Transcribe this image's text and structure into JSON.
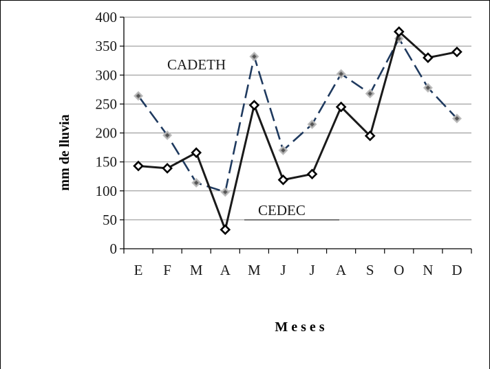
{
  "chart_data": {
    "type": "line",
    "categories": [
      "E",
      "F",
      "M",
      "A",
      "M",
      "J",
      "J",
      "A",
      "S",
      "O",
      "N",
      "D"
    ],
    "xlabel": "Meses",
    "ylabel": "mm de lluvia",
    "ylim": [
      0,
      400
    ],
    "yticks": [
      "0",
      "50",
      "100",
      "150",
      "200",
      "250",
      "300",
      "350",
      "400"
    ],
    "grid": true,
    "series": [
      {
        "name": "CEDEC",
        "values": [
          143,
          139,
          166,
          33,
          248,
          119,
          129,
          245,
          195,
          375,
          330,
          340
        ],
        "color": "#1a1a1a",
        "line_style": "solid",
        "marker": "diamond-open"
      },
      {
        "name": "CADETH",
        "values": [
          264,
          196,
          114,
          98,
          332,
          170,
          215,
          302,
          268,
          363,
          278,
          225
        ],
        "color": "#1f3a5f",
        "line_style": "dashed",
        "marker": "diamond-gray"
      }
    ],
    "annotations": [
      "CADETH",
      "CEDEC"
    ]
  }
}
